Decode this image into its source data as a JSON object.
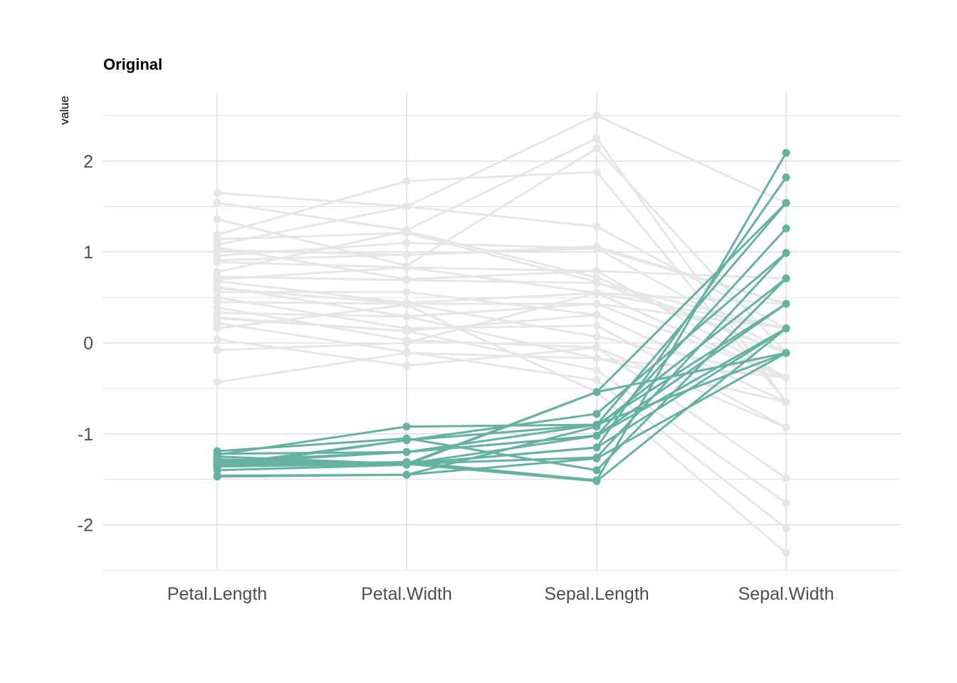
{
  "chart_data": {
    "type": "line",
    "subtype": "parallel-coordinates",
    "title": "Original",
    "xlabel": "",
    "ylabel": "value",
    "categories": [
      "Petal.Length",
      "Petal.Width",
      "Sepal.Length",
      "Sepal.Width"
    ],
    "ylim": [
      -2.5,
      2.55
    ],
    "yticks": [
      -2,
      -1,
      0,
      1,
      2
    ],
    "grid": true,
    "legend": "none",
    "colors": {
      "highlight": "#66b2a0",
      "background": "#e6e6e6",
      "grid": "#d9d9d9",
      "tick_text": "#4d4d4d"
    },
    "series": [
      {
        "group": "highlight",
        "values": [
          -1.34,
          -1.31,
          -1.51,
          2.09
        ]
      },
      {
        "group": "highlight",
        "values": [
          -1.28,
          -1.33,
          -1.15,
          1.82
        ]
      },
      {
        "group": "highlight",
        "values": [
          -1.22,
          -1.2,
          -0.9,
          1.54
        ]
      },
      {
        "group": "highlight",
        "values": [
          -1.4,
          -1.34,
          -0.54,
          1.54
        ]
      },
      {
        "group": "highlight",
        "values": [
          -1.3,
          -1.2,
          -1.02,
          1.26
        ]
      },
      {
        "group": "highlight",
        "values": [
          -1.36,
          -1.07,
          -0.78,
          0.99
        ]
      },
      {
        "group": "highlight",
        "values": [
          -1.25,
          -1.33,
          -1.26,
          0.99
        ]
      },
      {
        "group": "highlight",
        "values": [
          -1.46,
          -1.45,
          -0.92,
          0.71
        ]
      },
      {
        "group": "highlight",
        "values": [
          -1.19,
          -1.05,
          -1.4,
          0.71
        ]
      },
      {
        "group": "highlight",
        "values": [
          -1.33,
          -1.33,
          -1.02,
          0.43
        ]
      },
      {
        "group": "highlight",
        "values": [
          -1.23,
          -0.92,
          -0.9,
          0.43
        ]
      },
      {
        "group": "highlight",
        "values": [
          -1.3,
          -1.33,
          -1.52,
          0.16
        ]
      },
      {
        "group": "highlight",
        "values": [
          -1.32,
          -1.2,
          -1.02,
          0.16
        ]
      },
      {
        "group": "highlight",
        "values": [
          -1.36,
          -1.33,
          -1.15,
          0.16
        ]
      },
      {
        "group": "highlight",
        "values": [
          -1.28,
          -1.33,
          -0.54,
          -0.11
        ]
      },
      {
        "group": "highlight",
        "values": [
          -1.47,
          -1.45,
          -1.27,
          -0.11
        ]
      },
      {
        "group": "highlight",
        "values": [
          -1.34,
          -1.07,
          -0.9,
          -0.11
        ]
      },
      {
        "group": "background",
        "values": [
          1.65,
          1.5,
          2.5,
          1.54
        ]
      },
      {
        "group": "background",
        "values": [
          1.54,
          1.24,
          2.25,
          -0.65
        ]
      },
      {
        "group": "background",
        "values": [
          1.36,
          0.85,
          2.14,
          -0.11
        ]
      },
      {
        "group": "background",
        "values": [
          1.19,
          1.78,
          1.88,
          -0.65
        ]
      },
      {
        "group": "background",
        "values": [
          1.08,
          1.5,
          1.28,
          0.16
        ]
      },
      {
        "group": "background",
        "values": [
          1.02,
          0.97,
          1.04,
          -0.11
        ]
      },
      {
        "group": "background",
        "values": [
          0.96,
          1.1,
          1.04,
          0.43
        ]
      },
      {
        "group": "background",
        "values": [
          0.89,
          0.83,
          0.79,
          -0.38
        ]
      },
      {
        "group": "background",
        "values": [
          0.78,
          1.23,
          0.72,
          -0.11
        ]
      },
      {
        "group": "background",
        "values": [
          0.73,
          0.69,
          0.66,
          0.16
        ]
      },
      {
        "group": "background",
        "values": [
          0.68,
          0.44,
          0.55,
          -0.38
        ]
      },
      {
        "group": "background",
        "values": [
          0.62,
          0.29,
          0.43,
          0.16
        ]
      },
      {
        "group": "background",
        "values": [
          0.56,
          0.56,
          0.31,
          -0.65
        ]
      },
      {
        "group": "background",
        "values": [
          0.5,
          0.16,
          0.19,
          -0.93
        ]
      },
      {
        "group": "background",
        "values": [
          0.45,
          0.43,
          0.07,
          -0.38
        ]
      },
      {
        "group": "background",
        "values": [
          0.39,
          0.03,
          -0.05,
          -1.49
        ]
      },
      {
        "group": "background",
        "values": [
          0.33,
          0.29,
          -0.17,
          -0.65
        ]
      },
      {
        "group": "background",
        "values": [
          0.27,
          0.13,
          -0.3,
          -1.76
        ]
      },
      {
        "group": "background",
        "values": [
          0.22,
          -0.1,
          -0.41,
          -2.04
        ]
      },
      {
        "group": "background",
        "values": [
          0.16,
          0.42,
          -0.54,
          -2.31
        ]
      },
      {
        "group": "background",
        "values": [
          0.04,
          -0.25,
          -0.05,
          -0.93
        ]
      },
      {
        "group": "background",
        "values": [
          -0.08,
          0.0,
          0.55,
          0.43
        ]
      },
      {
        "group": "background",
        "values": [
          -0.43,
          -0.11,
          -0.17,
          -0.38
        ]
      },
      {
        "group": "background",
        "values": [
          0.91,
          0.97,
          1.06,
          0.43
        ]
      },
      {
        "group": "background",
        "values": [
          1.14,
          1.21,
          0.67,
          -0.11
        ]
      },
      {
        "group": "background",
        "values": [
          0.7,
          0.83,
          0.55,
          0.16
        ]
      },
      {
        "group": "background",
        "values": [
          0.6,
          0.43,
          0.43,
          -0.38
        ]
      },
      {
        "group": "background",
        "values": [
          0.28,
          0.13,
          0.31,
          -0.65
        ]
      },
      {
        "group": "background",
        "values": [
          1.05,
          0.7,
          0.79,
          0.71
        ]
      }
    ]
  }
}
